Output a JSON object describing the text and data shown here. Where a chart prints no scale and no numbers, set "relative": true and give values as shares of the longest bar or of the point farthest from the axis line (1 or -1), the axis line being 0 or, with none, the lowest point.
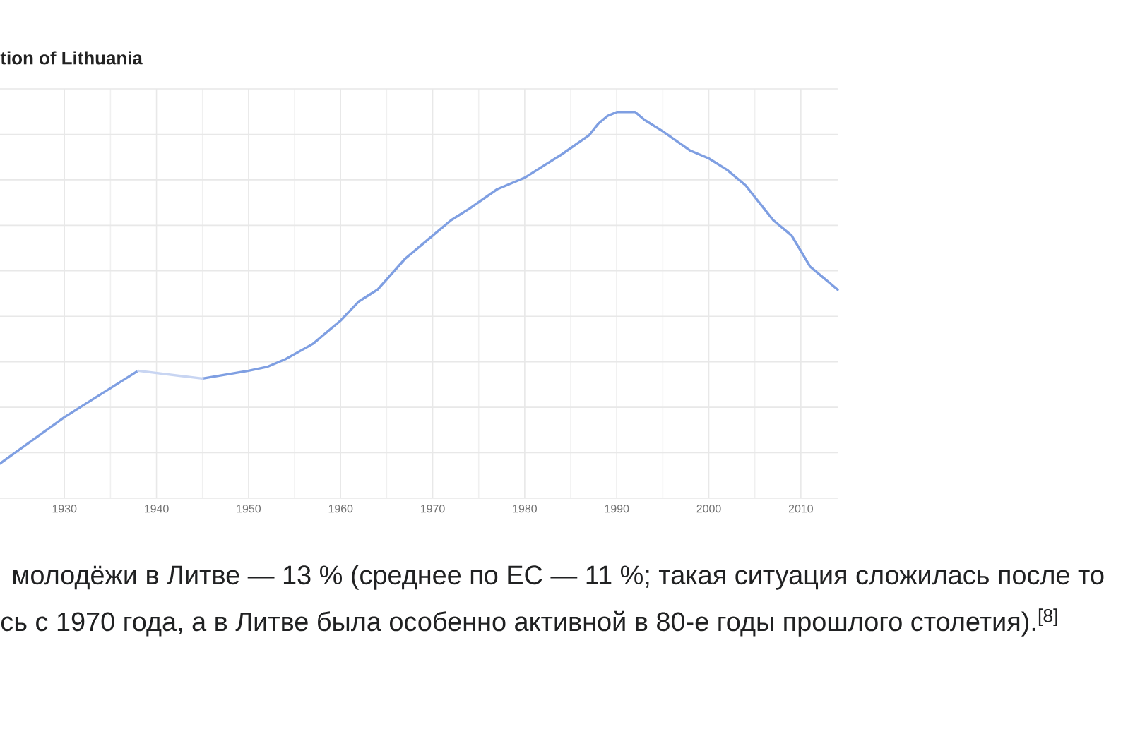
{
  "chart_data": {
    "type": "line",
    "title": "tion of Lithuania",
    "relative": true,
    "tick_labels": "x",
    "grid": true,
    "xlim": [
      1923,
      2014
    ],
    "xticks": [
      1930,
      1940,
      1950,
      1960,
      1970,
      1980,
      1990,
      2000,
      2010
    ],
    "series": [
      {
        "color": "#7f9fe2",
        "x": [
          1923,
          1930,
          1938,
          1942,
          1945,
          1950,
          1952,
          1954,
          1957,
          1960,
          1962,
          1964,
          1967,
          1969,
          1970,
          1972,
          1974,
          1977,
          1980,
          1982,
          1984,
          1987,
          1988,
          1989,
          1990,
          1991,
          1992,
          1993,
          1995,
          1998,
          2000,
          2002,
          2004,
          2006,
          2007,
          2009,
          2011,
          2012,
          2014
        ],
        "values": [
          0.09,
          0.21,
          0.33,
          null,
          0.31,
          0.33,
          0.34,
          0.36,
          0.4,
          0.46,
          0.51,
          0.54,
          0.62,
          0.66,
          0.68,
          0.72,
          0.75,
          0.8,
          0.83,
          0.86,
          0.89,
          0.94,
          0.97,
          0.99,
          1.0,
          1.0,
          1.0,
          0.98,
          0.95,
          0.9,
          0.88,
          0.85,
          0.81,
          0.75,
          0.72,
          0.68,
          0.6,
          0.58,
          0.54
        ]
      },
      {
        "color": "#c8d5f2",
        "x": [
          1938,
          1945
        ],
        "values": [
          0.33,
          0.31
        ]
      }
    ],
    "annotations": [
      "молодёжи в Литве — 13 % (среднее по ЕС — 11 %; такая ситуация сложилась после то",
      "сь с 1970 года, а в Литве была особенно активной в 80-е годы прошлого столетия).$^{[8]}$"
    ]
  }
}
